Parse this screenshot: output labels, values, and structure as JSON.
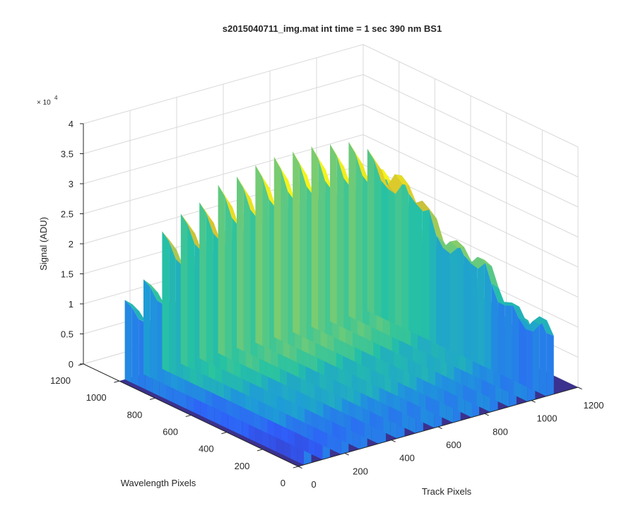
{
  "chart_data": {
    "type": "surface3d",
    "title": "s2015040711_img.mat int time = 1 sec  390 nm BS1",
    "xlabel": "Track Pixels",
    "ylabel": "Wavelength Pixels",
    "zlabel": "Signal (ADU)",
    "z_exponent_base": "× 10",
    "z_exponent_power": "4",
    "xlim": [
      0,
      1200
    ],
    "ylim": [
      0,
      1200
    ],
    "zlim": [
      0,
      4
    ],
    "z_multiplier": 10000,
    "x_ticks": [
      "0",
      "200",
      "400",
      "600",
      "800",
      "1000",
      "1200"
    ],
    "y_ticks": [
      "0",
      "200",
      "400",
      "600",
      "800",
      "1000",
      "1200"
    ],
    "z_ticks": [
      "0",
      "0.5",
      "1",
      "1.5",
      "2",
      "2.5",
      "3",
      "3.5",
      "4"
    ],
    "grid": true,
    "colormap": [
      "#3e26a8",
      "#2f5ffa",
      "#1e9bd8",
      "#26c2a3",
      "#86cd6a",
      "#d6c031",
      "#f9fb15"
    ],
    "floor_color": "#3b318e",
    "track_peaks": [
      {
        "track": 40,
        "peak": 1.3
      },
      {
        "track": 120,
        "peak": 1.55
      },
      {
        "track": 200,
        "peak": 2.25
      },
      {
        "track": 280,
        "peak": 2.45
      },
      {
        "track": 360,
        "peak": 2.55
      },
      {
        "track": 440,
        "peak": 2.75
      },
      {
        "track": 520,
        "peak": 2.8
      },
      {
        "track": 600,
        "peak": 2.9
      },
      {
        "track": 680,
        "peak": 2.95
      },
      {
        "track": 760,
        "peak": 2.95
      },
      {
        "track": 840,
        "peak": 2.95
      },
      {
        "track": 920,
        "peak": 2.9
      },
      {
        "track": 1000,
        "peak": 2.85
      },
      {
        "track": 1080,
        "peak": 2.65
      }
    ],
    "wavelength_range": [
      0,
      1000
    ]
  }
}
